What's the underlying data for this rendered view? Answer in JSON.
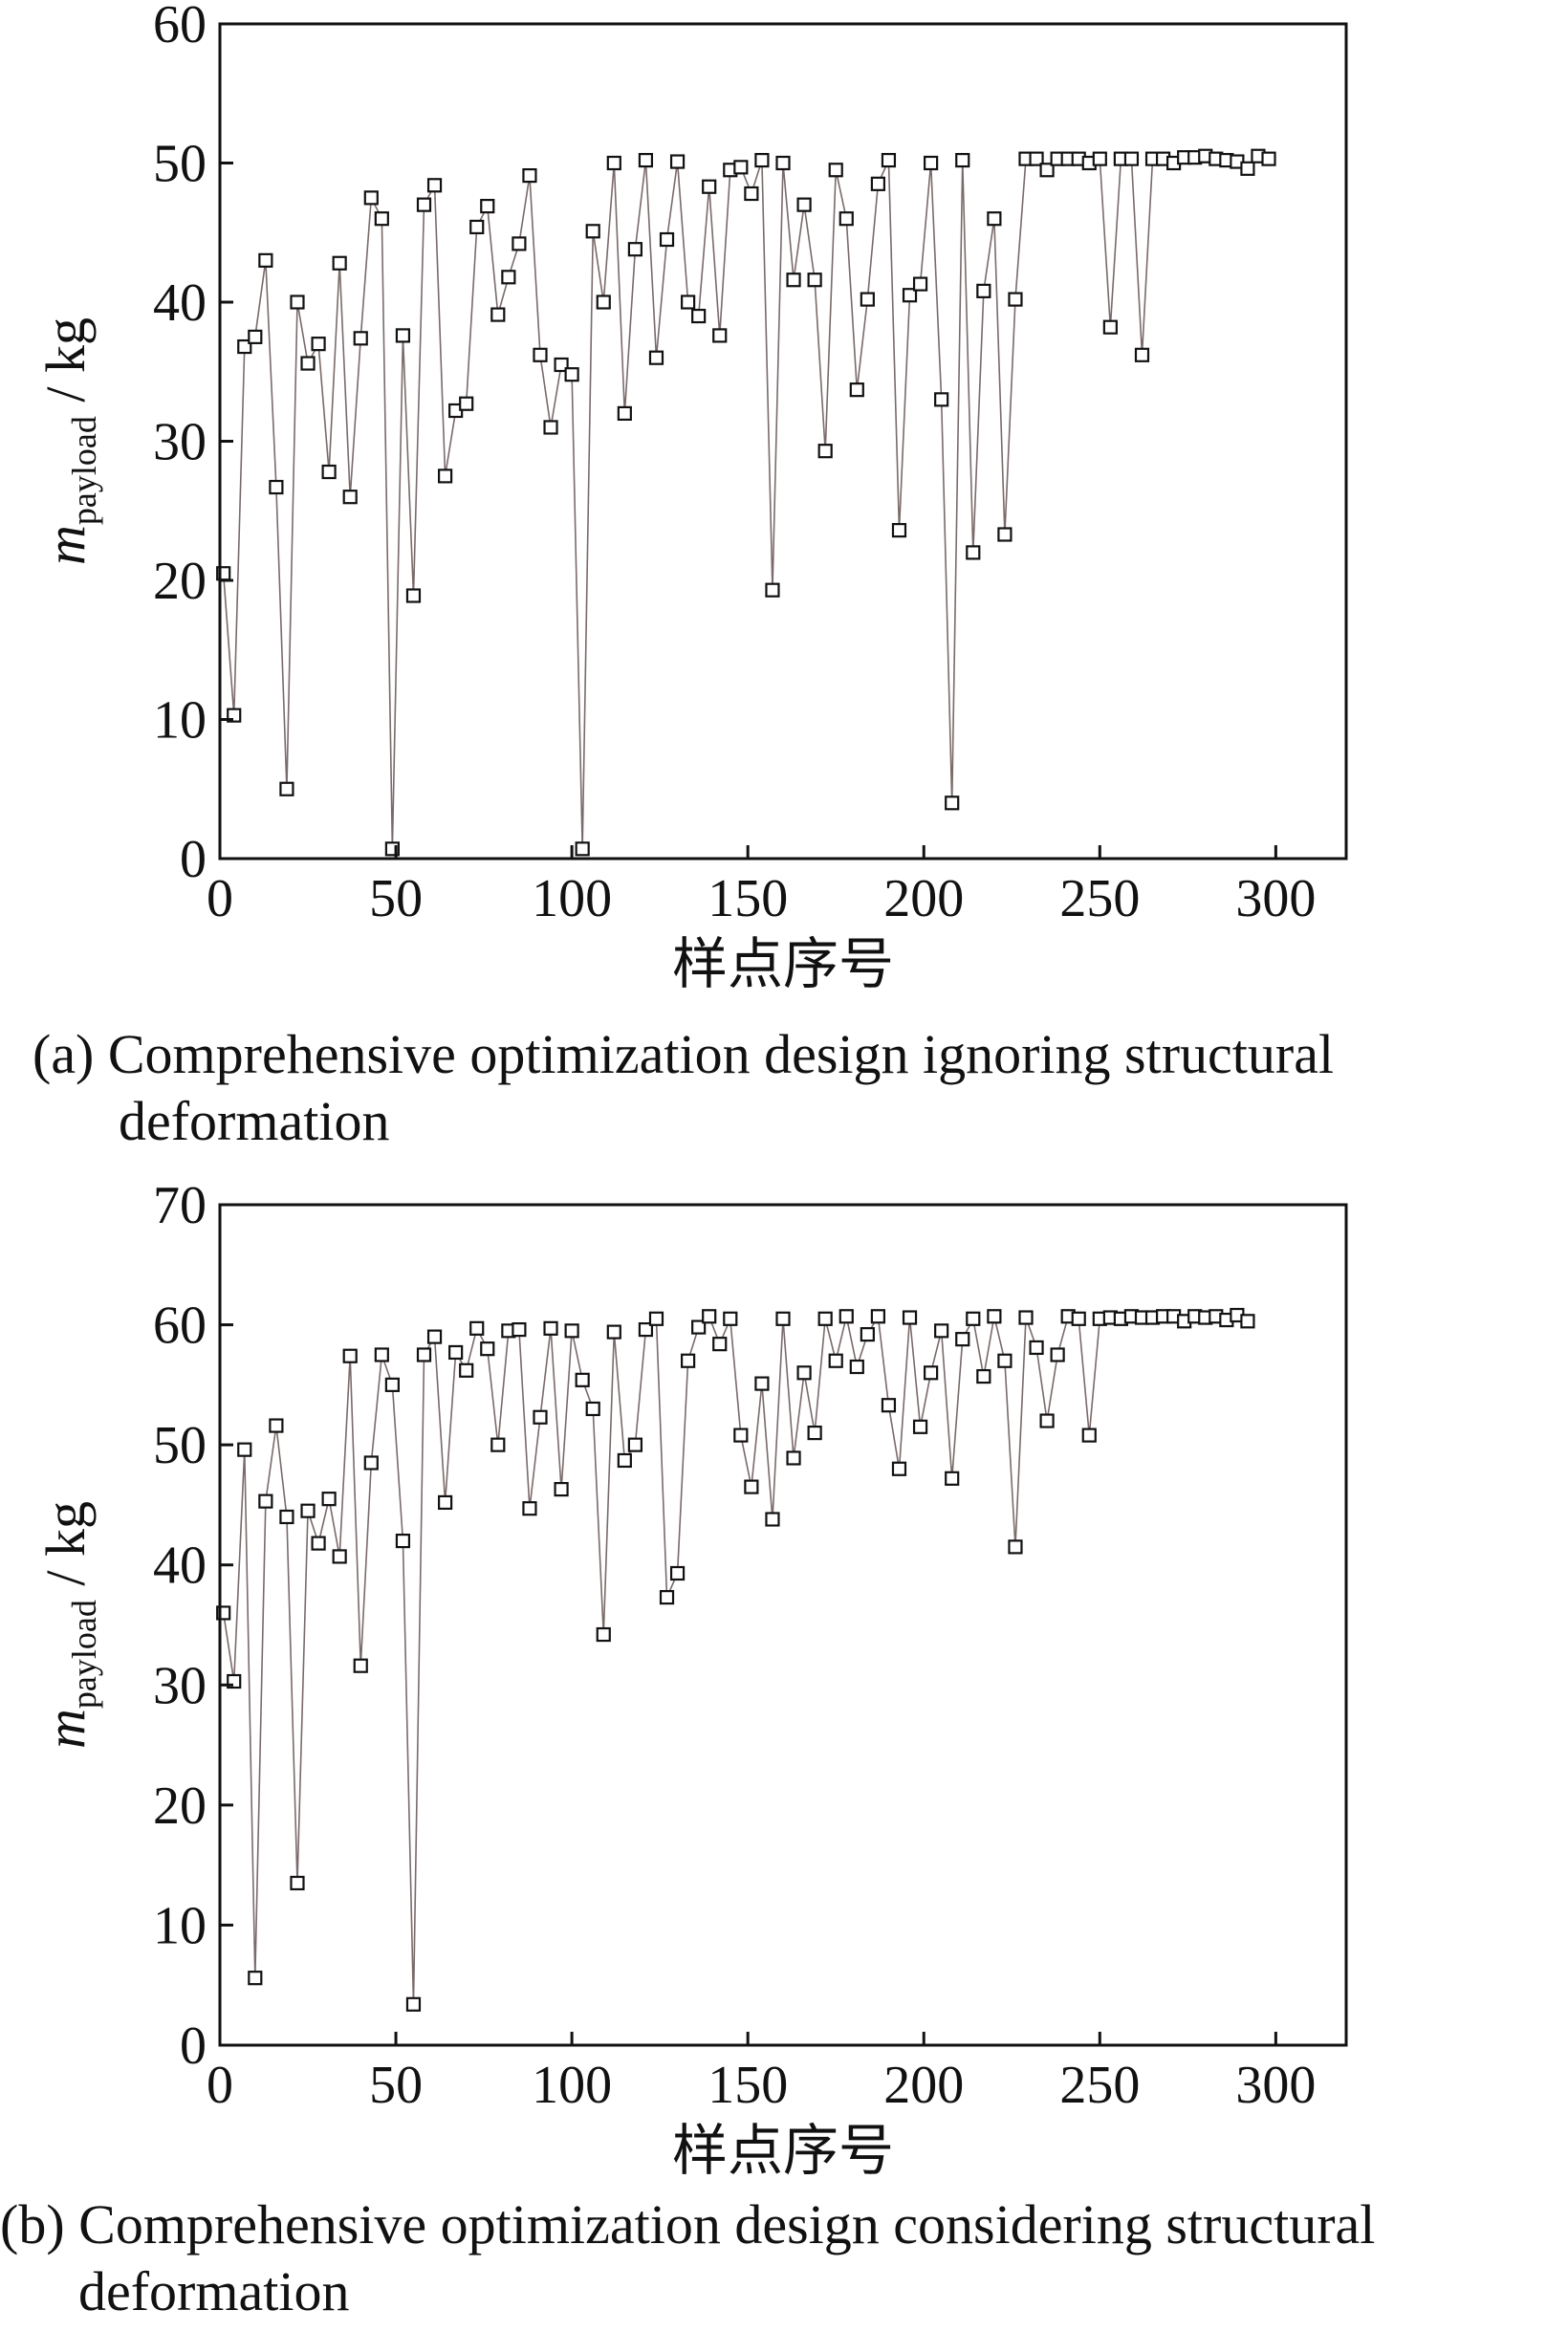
{
  "chart_data": [
    {
      "type": "line",
      "caption": "(a) Comprehensive optimization design ignoring structural deformation",
      "xlabel": "样点序号",
      "ylabel": {
        "symbol": "m",
        "subscript": "payload",
        "unit": "/ kg"
      },
      "color": "#7a6a6a",
      "marker": "square",
      "marker_color": "#111111",
      "x": [
        1,
        4,
        7,
        10,
        13,
        16,
        19,
        22,
        25,
        28,
        31,
        34,
        37,
        40,
        43,
        46,
        49,
        52,
        55,
        58,
        61,
        64,
        67,
        70,
        73,
        76,
        79,
        82,
        85,
        88,
        91,
        94,
        97,
        100,
        103,
        106,
        109,
        112,
        115,
        118,
        121,
        124,
        127,
        130,
        133,
        136,
        139,
        142,
        145,
        148,
        151,
        154,
        157,
        160,
        163,
        166,
        169,
        172,
        175,
        178,
        181,
        184,
        187,
        190,
        193,
        196,
        199,
        202,
        205,
        208,
        211,
        214,
        217,
        220,
        223,
        226,
        229,
        232,
        235,
        238,
        241,
        244,
        247,
        250,
        253,
        256,
        259,
        262,
        265,
        268,
        271,
        274,
        277,
        280,
        283,
        286,
        289,
        292,
        295,
        298
      ],
      "values": [
        20.5,
        10.3,
        36.8,
        37.5,
        43,
        26.7,
        5,
        40,
        35.6,
        37,
        27.8,
        42.8,
        26,
        37.4,
        47.5,
        46,
        0.7,
        37.6,
        18.9,
        47,
        48.4,
        27.5,
        32.2,
        32.7,
        45.4,
        46.9,
        39.1,
        41.8,
        44.2,
        49.1,
        36.2,
        31,
        35.5,
        34.8,
        0.7,
        45.1,
        40,
        50,
        32,
        43.8,
        50.2,
        36,
        44.5,
        50.1,
        40,
        39,
        48.3,
        37.6,
        49.5,
        49.7,
        47.8,
        50.2,
        19.3,
        50,
        41.6,
        47,
        41.6,
        29.3,
        49.5,
        46,
        33.7,
        40.2,
        48.5,
        50.2,
        23.6,
        40.5,
        41.3,
        50,
        33,
        4,
        50.2,
        22,
        40.8,
        46,
        23.3,
        40.2,
        50.3,
        50.3,
        49.5,
        50.3,
        50.3,
        50.3,
        50,
        50.3,
        38.2,
        50.3,
        50.3,
        36.2,
        50.3,
        50.3,
        50,
        50.4,
        50.4,
        50.5,
        50.3,
        50.2,
        50.1,
        49.6,
        50.5,
        50.3
      ],
      "xlim": [
        0,
        320
      ],
      "xticks": [
        0,
        50,
        100,
        150,
        200,
        250,
        300
      ],
      "ylim": [
        0,
        60
      ],
      "yticks": [
        0,
        10,
        20,
        30,
        40,
        50,
        60
      ]
    },
    {
      "type": "line",
      "caption": "(b) Comprehensive optimization design considering structural deformation",
      "xlabel": "样点序号",
      "ylabel": {
        "symbol": "m",
        "subscript": "payload",
        "unit": "/ kg"
      },
      "color": "#7a6a6a",
      "marker": "square",
      "marker_color": "#111111",
      "x": [
        1,
        4,
        7,
        10,
        13,
        16,
        19,
        22,
        25,
        28,
        31,
        34,
        37,
        40,
        43,
        46,
        49,
        52,
        55,
        58,
        61,
        64,
        67,
        70,
        73,
        76,
        79,
        82,
        85,
        88,
        91,
        94,
        97,
        100,
        103,
        106,
        109,
        112,
        115,
        118,
        121,
        124,
        127,
        130,
        133,
        136,
        139,
        142,
        145,
        148,
        151,
        154,
        157,
        160,
        163,
        166,
        169,
        172,
        175,
        178,
        181,
        184,
        187,
        190,
        193,
        196,
        199,
        202,
        205,
        208,
        211,
        214,
        217,
        220,
        223,
        226,
        229,
        232,
        235,
        238,
        241,
        244,
        247,
        250,
        253,
        256,
        259,
        262,
        265,
        268,
        271,
        274,
        277,
        280,
        283,
        286,
        289,
        292
      ],
      "values": [
        36,
        30.3,
        49.6,
        5.6,
        45.3,
        51.6,
        44,
        13.5,
        44.5,
        41.8,
        45.5,
        40.7,
        57.4,
        31.6,
        48.5,
        57.5,
        55,
        42,
        3.4,
        57.5,
        59,
        45.2,
        57.7,
        56.2,
        59.7,
        58,
        50,
        59.5,
        59.6,
        44.7,
        52.3,
        59.7,
        46.3,
        59.5,
        55.4,
        53,
        34.2,
        59.4,
        48.7,
        50,
        59.6,
        60.5,
        37.3,
        39.3,
        57,
        59.8,
        60.7,
        58.4,
        60.5,
        50.8,
        46.5,
        55.1,
        43.8,
        60.5,
        48.9,
        56,
        51,
        60.5,
        57,
        60.7,
        56.5,
        59.2,
        60.7,
        53.3,
        48,
        60.6,
        51.5,
        56,
        59.5,
        47.2,
        58.8,
        60.5,
        55.7,
        60.7,
        57,
        41.5,
        60.6,
        58.1,
        52,
        57.5,
        60.7,
        60.5,
        50.8,
        60.5,
        60.6,
        60.5,
        60.7,
        60.6,
        60.6,
        60.7,
        60.7,
        60.3,
        60.7,
        60.6,
        60.7,
        60.4,
        60.8,
        60.3
      ],
      "xlim": [
        0,
        320
      ],
      "xticks": [
        0,
        50,
        100,
        150,
        200,
        250,
        300
      ],
      "ylim": [
        0,
        70
      ],
      "yticks": [
        0,
        10,
        20,
        30,
        40,
        50,
        60,
        70
      ]
    }
  ]
}
